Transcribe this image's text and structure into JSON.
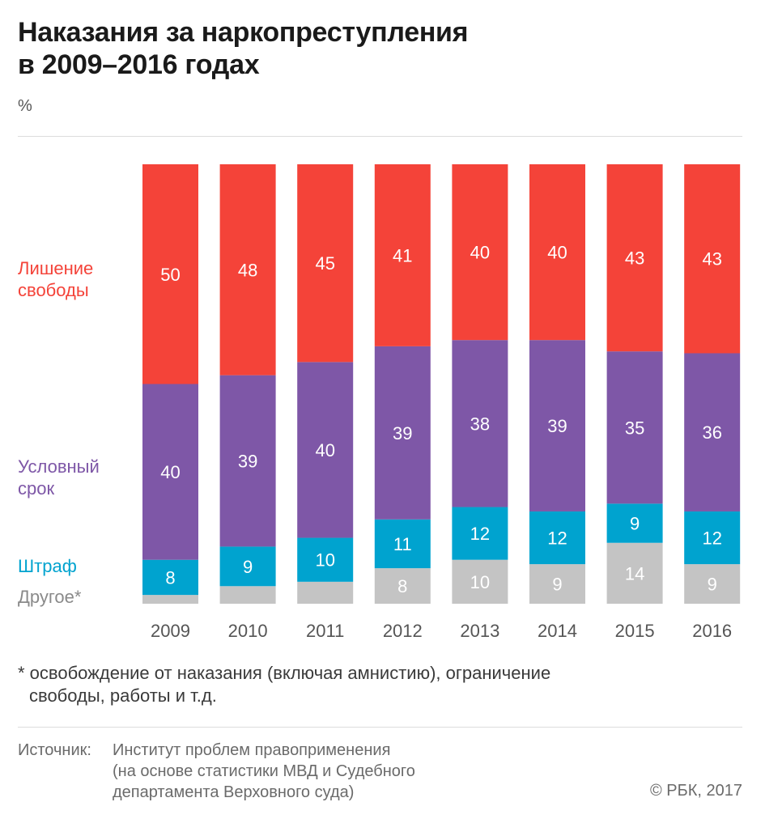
{
  "header": {
    "title_line1": "Наказания за наркопреступления",
    "title_line2": "в 2009–2016 годах",
    "unit": "%"
  },
  "legend": {
    "red_line1": "Лишение",
    "red_line2": "свободы",
    "purple_line1": "Условный",
    "purple_line2": "срок",
    "cyan": "Штраф",
    "gray": "Другое*"
  },
  "colors": {
    "prison": "#f44339",
    "probation": "#7e57a7",
    "fine": "#00a3cf",
    "other": "#c4c4c4"
  },
  "chart_data": {
    "type": "bar",
    "stacked": true,
    "categories": [
      "2009",
      "2010",
      "2011",
      "2012",
      "2013",
      "2014",
      "2015",
      "2016"
    ],
    "series": [
      {
        "name": "Другое*",
        "color": "#c4c4c4",
        "values": [
          2,
          4,
          5,
          8,
          10,
          9,
          14,
          9
        ],
        "labels": [
          "",
          "",
          "",
          "8",
          "10",
          "9",
          "14",
          "9"
        ]
      },
      {
        "name": "Штраф",
        "color": "#00a3cf",
        "values": [
          8,
          9,
          10,
          11,
          12,
          12,
          9,
          12
        ],
        "labels": [
          "8",
          "9",
          "10",
          "11",
          "12",
          "12",
          "9",
          "12"
        ]
      },
      {
        "name": "Условный срок",
        "color": "#7e57a7",
        "values": [
          40,
          39,
          40,
          39,
          38,
          39,
          35,
          36
        ],
        "labels": [
          "40",
          "39",
          "40",
          "39",
          "38",
          "39",
          "35",
          "36"
        ]
      },
      {
        "name": "Лишение свободы",
        "color": "#f44339",
        "values": [
          50,
          48,
          45,
          41,
          40,
          40,
          43,
          43
        ],
        "labels": [
          "50",
          "48",
          "45",
          "41",
          "40",
          "40",
          "43",
          "43"
        ]
      }
    ],
    "ylim": [
      0,
      100
    ],
    "ylabel": "%",
    "grid": false
  },
  "footnote": {
    "line1": "* освобождение от наказания (включая амнистию), ограничение",
    "line2": "свободы, работы и т.д."
  },
  "source": {
    "label": "Источник:",
    "line1": "Институт проблем правоприменения",
    "line2": "(на основе статистики МВД и Судебного",
    "line3": "департамента Верховного суда)"
  },
  "copyright": "© РБК, 2017"
}
